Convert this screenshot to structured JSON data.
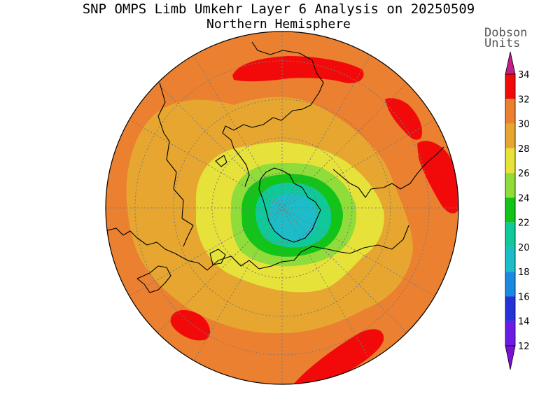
{
  "title": "SNP OMPS Limb Umkehr Layer 6 Analysis on 20250509",
  "subtitle": "Northern Hemisphere",
  "colorbar": {
    "units_line1": "Dobson",
    "units_line2": "Units",
    "ticks": [
      "34",
      "32",
      "30",
      "28",
      "26",
      "24",
      "22",
      "20",
      "18",
      "16",
      "14",
      "12"
    ],
    "colors": {
      "10-12": "#7b10d6",
      "12-14": "#6a1ce6",
      "14-16": "#2432d8",
      "16-18": "#1a8ae0",
      "18-20": "#1cbcc8",
      "20-22": "#10c99a",
      "22-24": "#12c418",
      "24-26": "#8fdc3a",
      "26-28": "#e6e23a",
      "28-30": "#e6a630",
      "30-32": "#ea8030",
      "32-34": "#f20a0a",
      "34+": "#c21f8a"
    }
  },
  "map": {
    "projection": "north polar stereographic",
    "field": "ozone column, Umkehr layer 6",
    "background_level": "30-32",
    "polar_minimum": "18-20"
  }
}
